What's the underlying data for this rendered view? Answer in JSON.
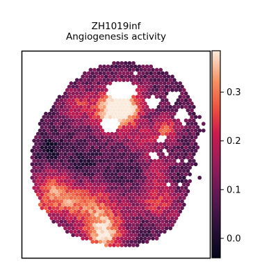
{
  "chart_data": {
    "type": "heatmap",
    "title": "ZH1019inf",
    "subtitle": "Angiogenesis activity",
    "xlabel": "",
    "ylabel": "",
    "colormap": "rocket",
    "colorbar": {
      "range": [
        -0.04,
        0.385
      ],
      "ticks": [
        0.0,
        0.1,
        0.2,
        0.3
      ],
      "tick_labels": [
        "0.0",
        "0.1",
        "0.2",
        "0.3"
      ]
    },
    "axes": {
      "visible_ticks": false,
      "frame": true
    },
    "spot_summary": {
      "min_value": -0.04,
      "max_value": 0.385,
      "high_regions": [
        "upper-center",
        "lower-center",
        "lower-left",
        "right"
      ]
    }
  }
}
